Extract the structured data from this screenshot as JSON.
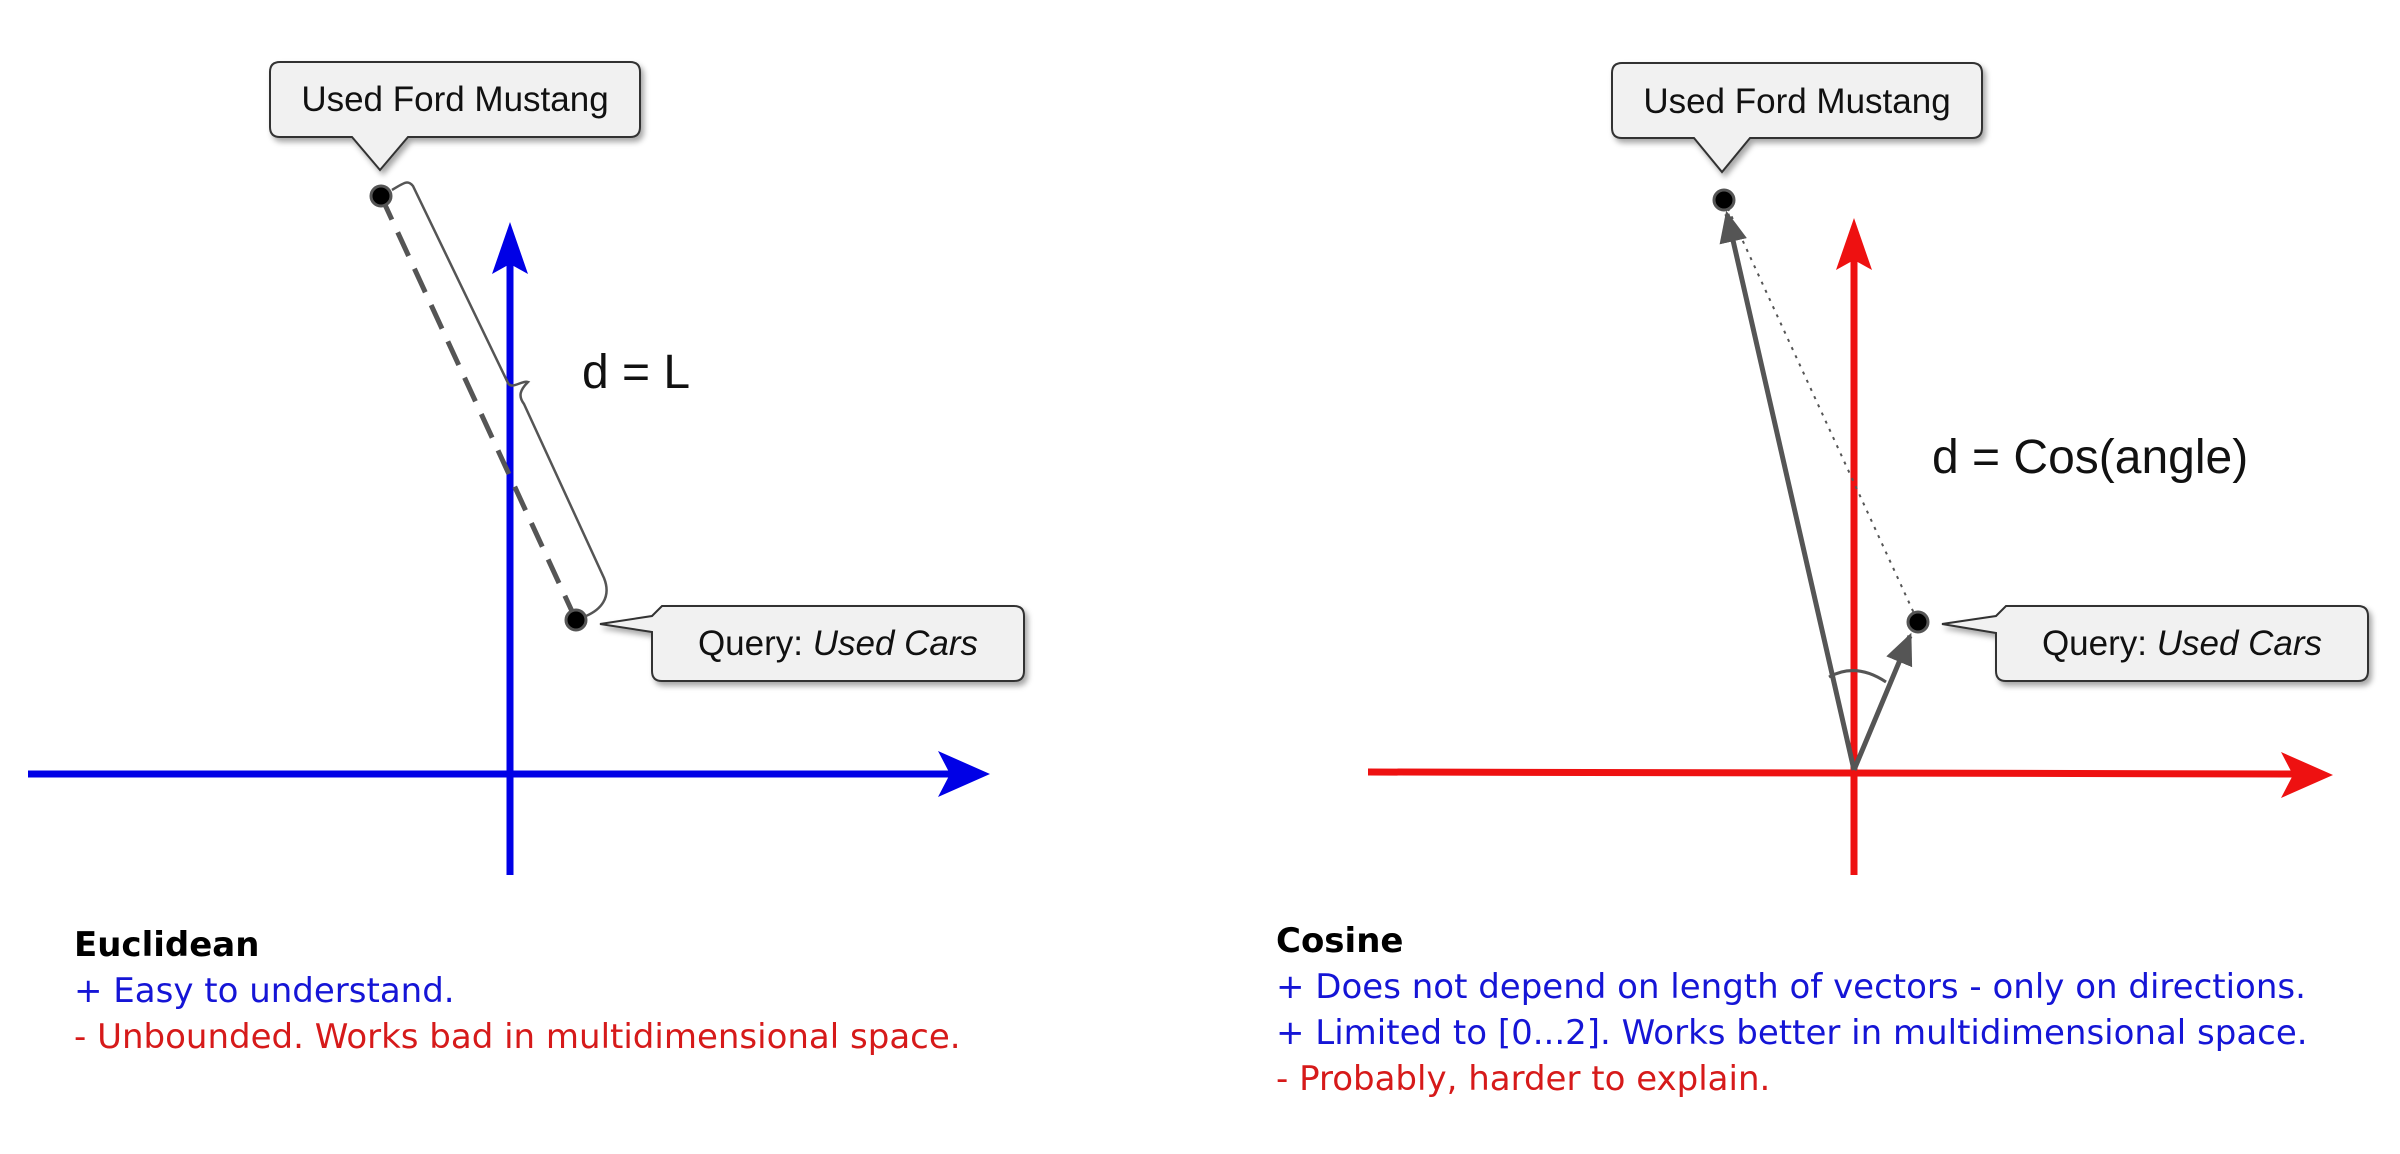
{
  "euclidean": {
    "label_mustang": "Used Ford Mustang",
    "label_query_prefix": "Query: ",
    "label_query_italic": "Used Cars",
    "formula": "d = L",
    "axis_color": "#0000e6",
    "caption": {
      "title": "Euclidean",
      "pros": [
        "+ Easy to understand."
      ],
      "cons": [
        "- Unbounded. Works bad in multidimensional space."
      ]
    }
  },
  "cosine": {
    "label_mustang": "Used Ford Mustang",
    "label_query_prefix": "Query: ",
    "label_query_italic": "Used Cars",
    "formula": "d = Cos(angle)",
    "axis_color": "#ee1111",
    "caption": {
      "title": "Cosine",
      "pros": [
        "+ Does not depend on length of vectors - only on directions.",
        "+ Limited to [0...2]. Works better in multidimensional space."
      ],
      "cons": [
        "- Probably, harder to explain."
      ]
    }
  },
  "colors": {
    "pro_text": "#1515d6",
    "con_text": "#d61a1a",
    "vector": "#555555"
  }
}
